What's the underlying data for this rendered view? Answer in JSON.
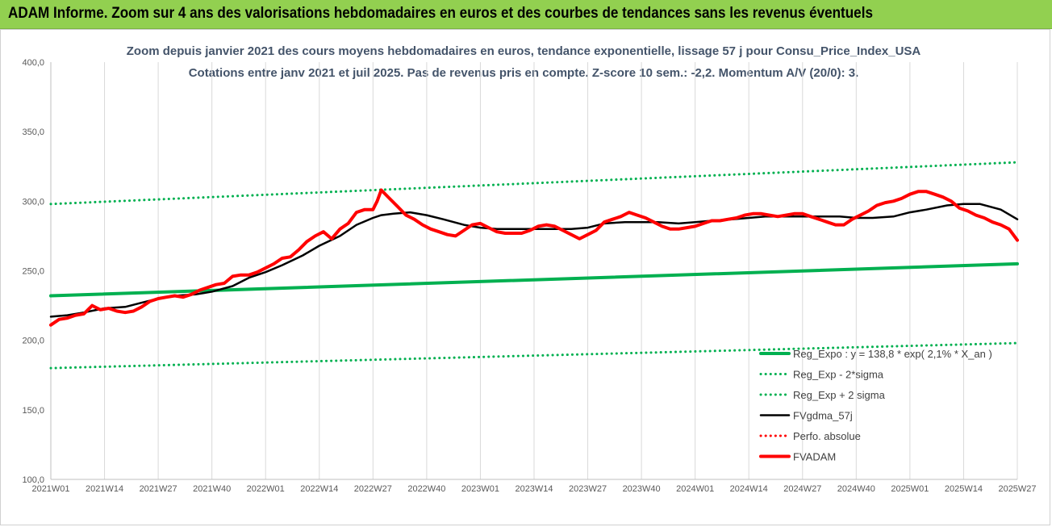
{
  "banner": {
    "text": "ADAM Informe. Zoom sur 4 ans des valorisations hebdomadaires en euros et des courbes de tendances sans les revenus éventuels",
    "color": "#92d050"
  },
  "chart_data": {
    "type": "line",
    "title": "Zoom depuis janvier 2021 des cours moyens hebdomadaires en euros, tendance exponentielle, lissage 57 j pour Consu_Price_Index_USA",
    "subtitle": "Cotations entre janv 2021 et juil 2025. Pas de revenus pris en compte. Z-score 10 sem.: -2,2. Momentum A/V (20/0): 3.",
    "ylim": [
      100,
      400
    ],
    "yticks": [
      "100,0",
      "150,0",
      "200,0",
      "250,0",
      "300,0",
      "350,0",
      "400,0"
    ],
    "ytick_values": [
      100,
      150,
      200,
      250,
      300,
      350,
      400
    ],
    "xticks": [
      "2021W01",
      "2021W14",
      "2021W27",
      "2021W40",
      "2022W01",
      "2022W14",
      "2022W27",
      "2022W40",
      "2023W01",
      "2023W14",
      "2023W27",
      "2023W40",
      "2024W01",
      "2024W14",
      "2024W27",
      "2024W40",
      "2025W01",
      "2025W14",
      "2025W27"
    ],
    "grid": "vertical",
    "legend_position": "bottom-right",
    "series": [
      {
        "name": "Reg_Expo : y = 138,8 * exp( 2,1% *  X_an )",
        "color": "#00b050",
        "style": "solid-thick",
        "x": [
          0,
          234
        ],
        "values": [
          232,
          255
        ]
      },
      {
        "name": "Reg_Exp - 2*sigma",
        "color": "#00b050",
        "style": "dotted",
        "x": [
          0,
          234
        ],
        "values": [
          180,
          198
        ]
      },
      {
        "name": "Reg_Exp + 2 sigma",
        "color": "#00b050",
        "style": "dotted",
        "x": [
          0,
          234
        ],
        "values": [
          298,
          328
        ]
      },
      {
        "name": "FVgdma_57j",
        "color": "#000000",
        "style": "solid",
        "x": [
          0,
          4,
          8,
          13,
          18,
          22,
          26,
          30,
          35,
          39,
          44,
          48,
          52,
          56,
          61,
          65,
          70,
          74,
          78,
          80,
          83,
          87,
          91,
          95,
          100,
          104,
          108,
          112,
          117,
          121,
          126,
          130,
          134,
          139,
          143,
          147,
          152,
          156,
          160,
          165,
          169,
          173,
          178,
          182,
          186,
          191,
          195,
          199,
          204,
          208,
          212,
          217,
          221,
          225,
          230,
          234
        ],
        "values": [
          217,
          218,
          220,
          223,
          224,
          227,
          230,
          232,
          233,
          235,
          239,
          245,
          249,
          254,
          261,
          268,
          275,
          283,
          288,
          290,
          291,
          292,
          290,
          287,
          283,
          281,
          280,
          280,
          280,
          280,
          280,
          281,
          284,
          285,
          285,
          285,
          284,
          285,
          286,
          287,
          288,
          289,
          289,
          289,
          289,
          289,
          288,
          288,
          289,
          292,
          294,
          297,
          298,
          298,
          294,
          287
        ]
      },
      {
        "name": "Perfo. absolue",
        "color": "#ff0000",
        "style": "dotted",
        "x": [],
        "values": []
      },
      {
        "name": "FVADAM",
        "color": "#ff0000",
        "style": "solid-thick",
        "x": [
          0,
          2,
          4,
          6,
          8,
          10,
          12,
          14,
          16,
          18,
          20,
          22,
          24,
          26,
          28,
          30,
          32,
          34,
          36,
          38,
          40,
          42,
          44,
          46,
          48,
          50,
          52,
          54,
          56,
          58,
          60,
          62,
          64,
          66,
          68,
          70,
          72,
          74,
          76,
          78,
          79,
          80,
          82,
          84,
          86,
          88,
          90,
          92,
          94,
          96,
          98,
          100,
          102,
          104,
          106,
          108,
          110,
          112,
          114,
          116,
          118,
          120,
          122,
          124,
          126,
          128,
          130,
          132,
          134,
          136,
          138,
          140,
          142,
          144,
          146,
          148,
          150,
          152,
          154,
          156,
          158,
          160,
          162,
          164,
          166,
          168,
          170,
          172,
          174,
          176,
          178,
          180,
          182,
          184,
          186,
          188,
          190,
          192,
          194,
          196,
          198,
          200,
          202,
          204,
          206,
          208,
          210,
          212,
          214,
          216,
          218,
          220,
          222,
          224,
          226,
          228,
          230,
          232,
          234
        ],
        "values": [
          211,
          215,
          216,
          218,
          219,
          225,
          222,
          223,
          221,
          220,
          221,
          224,
          228,
          230,
          231,
          232,
          231,
          233,
          236,
          238,
          240,
          241,
          246,
          247,
          247,
          249,
          252,
          255,
          259,
          260,
          265,
          271,
          275,
          278,
          273,
          280,
          284,
          292,
          294,
          294,
          300,
          308,
          302,
          296,
          290,
          287,
          283,
          280,
          278,
          276,
          275,
          279,
          283,
          284,
          281,
          278,
          277,
          277,
          277,
          279,
          282,
          283,
          282,
          279,
          276,
          273,
          276,
          279,
          285,
          287,
          289,
          292,
          290,
          288,
          285,
          282,
          280,
          280,
          281,
          282,
          284,
          286,
          286,
          287,
          288,
          290,
          291,
          291,
          290,
          289,
          290,
          291,
          291,
          289,
          287,
          285,
          283,
          283,
          287,
          290,
          293,
          297,
          299,
          300,
          302,
          305,
          307,
          307,
          305,
          303,
          300,
          295,
          293,
          290,
          288,
          285,
          283,
          280,
          272
        ]
      }
    ]
  }
}
